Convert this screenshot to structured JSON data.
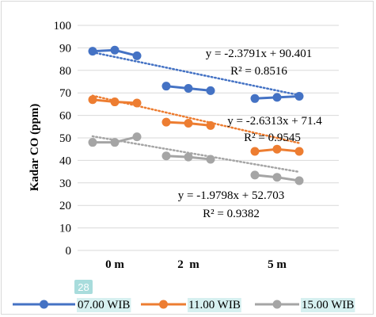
{
  "chart_data": {
    "type": "line",
    "title": "",
    "ylabel": "Kadar CO (ppm)",
    "xlabel": "",
    "ylim": [
      0,
      100
    ],
    "yticks": [
      0,
      10,
      20,
      30,
      40,
      50,
      60,
      70,
      80,
      90,
      100
    ],
    "x_groups": [
      "0 m",
      "2  m",
      "5 m"
    ],
    "grid": "horizontal",
    "legend_position": "bottom",
    "series": [
      {
        "name": "07.00 WIB",
        "color": "#4472C4",
        "segments": [
          [
            88.5,
            89.0,
            86.5
          ],
          [
            73.0,
            72.0,
            71.0
          ],
          [
            67.5,
            68.0,
            68.5
          ]
        ],
        "trendline": {
          "equation": "y = -2.3791x + 90.401",
          "r2": "R² = 0.8516",
          "slope": -2.3791,
          "intercept": 90.401
        }
      },
      {
        "name": "11.00 WIB",
        "color": "#ED7D31",
        "segments": [
          [
            67.0,
            66.0,
            65.5
          ],
          [
            57.0,
            56.5,
            55.5
          ],
          [
            44.0,
            45.0,
            44.0
          ]
        ],
        "trendline": {
          "equation": "y = -2.6313x + 71.4",
          "r2": "R² = 0.9545",
          "slope": -2.6313,
          "intercept": 71.4
        }
      },
      {
        "name": "15.00 WIB",
        "color": "#A5A5A5",
        "segments": [
          [
            48.0,
            48.0,
            50.5
          ],
          [
            42.0,
            41.5,
            40.5
          ],
          [
            33.5,
            32.5,
            31.0
          ]
        ],
        "trendline": {
          "equation": "y = -1.9798x + 52.703",
          "r2": "R² = 0.9382",
          "slope": -1.9798,
          "intercept": 52.703
        }
      }
    ],
    "badge": "28"
  }
}
